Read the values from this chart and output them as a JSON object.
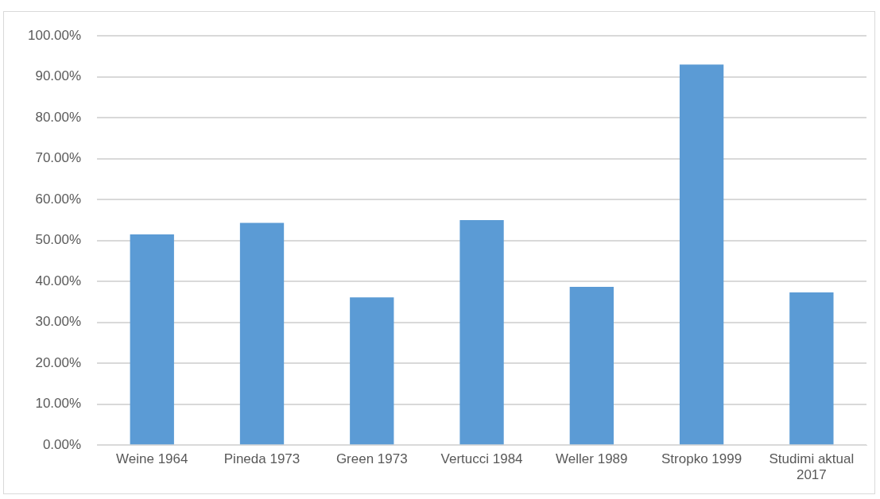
{
  "chart_data": {
    "type": "bar",
    "categories": [
      "Weine 1964",
      "Pineda 1973",
      "Green 1973",
      "Vertucci 1984",
      "Weller 1989",
      "Stropko 1999",
      "Studimi aktual 2017"
    ],
    "values": [
      51.5,
      54.3,
      36.1,
      55.0,
      38.7,
      93.0,
      37.3
    ],
    "color": "#5b9bd5",
    "ylim": [
      0,
      100
    ],
    "yticks": [
      {
        "value": 0,
        "label": "0.00%"
      },
      {
        "value": 10,
        "label": "10.00%"
      },
      {
        "value": 20,
        "label": "20.00%"
      },
      {
        "value": 30,
        "label": "30.00%"
      },
      {
        "value": 40,
        "label": "40.00%"
      },
      {
        "value": 50,
        "label": "50.00%"
      },
      {
        "value": 60,
        "label": "60.00%"
      },
      {
        "value": 70,
        "label": "70.00%"
      },
      {
        "value": 80,
        "label": "80.00%"
      },
      {
        "value": 90,
        "label": "90.00%"
      },
      {
        "value": 100,
        "label": "100.00%"
      }
    ],
    "grid": "y"
  }
}
